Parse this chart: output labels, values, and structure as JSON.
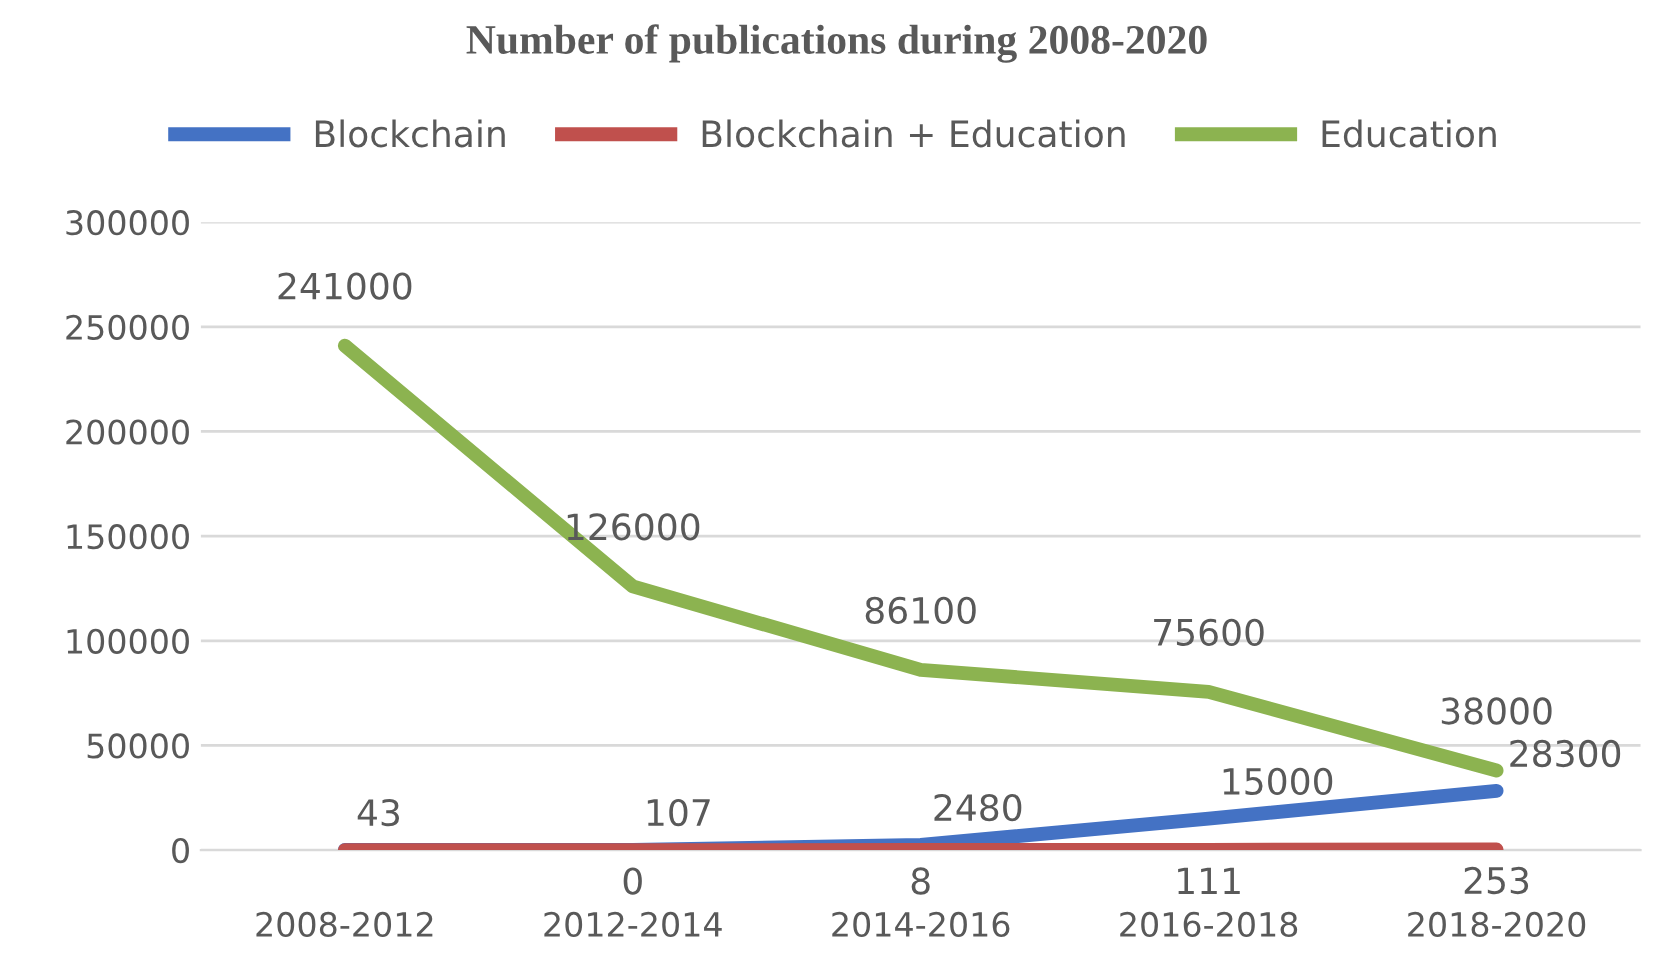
{
  "chart_data": {
    "type": "line",
    "title": "Number of publications during 2008-2020",
    "categories": [
      "2008-2012",
      "2012-2014",
      "2014-2016",
      "2016-2018",
      "2018-2020"
    ],
    "series": [
      {
        "name": "Blockchain",
        "color": "#4472c4",
        "values": [
          43,
          107,
          2480,
          15000,
          28300
        ],
        "value_labels": [
          "43",
          "107",
          "2480",
          "15000",
          "28300"
        ]
      },
      {
        "name": "Blockchain + Education",
        "color": "#c0504d",
        "values": [
          0,
          0,
          8,
          111,
          253
        ],
        "value_labels": [
          null,
          "0",
          "8",
          "111",
          "253"
        ]
      },
      {
        "name": "Education",
        "color": "#8cb350",
        "values": [
          241000,
          126000,
          86100,
          75600,
          38000
        ],
        "value_labels": [
          "241000",
          "126000",
          "86100",
          "75600",
          "38000"
        ]
      }
    ],
    "ylim": [
      0,
      300000
    ],
    "yticks": [
      0,
      50000,
      100000,
      150000,
      200000,
      250000,
      300000
    ],
    "grid": "y",
    "legend": "top",
    "marker": "none",
    "line_style": "solid"
  }
}
